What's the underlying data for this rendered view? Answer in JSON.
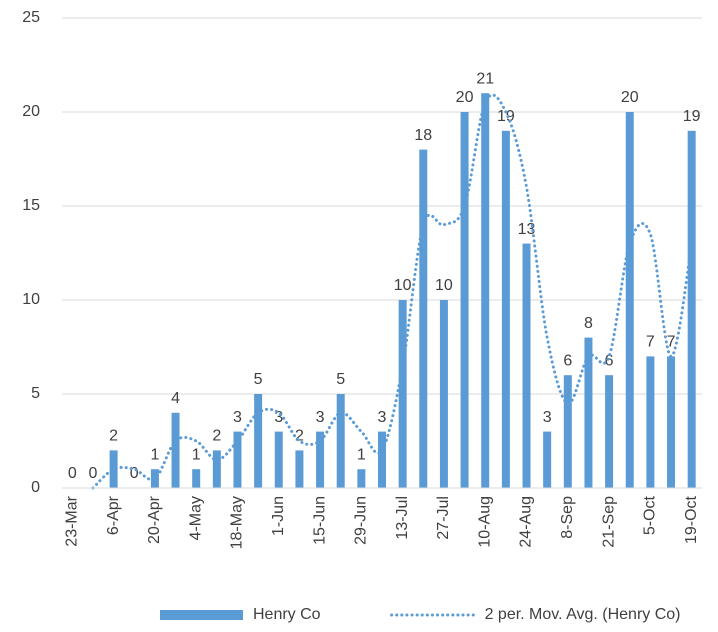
{
  "chart_data": {
    "type": "bar",
    "categories": [
      "23-Mar",
      null,
      "6-Apr",
      null,
      "20-Apr",
      null,
      "4-May",
      null,
      "18-May",
      null,
      "1-Jun",
      null,
      "15-Jun",
      null,
      "29-Jun",
      null,
      "13-Jul",
      null,
      "27-Jul",
      null,
      "10-Aug",
      null,
      "24-Aug",
      null,
      "8-Sep",
      null,
      "21-Sep",
      null,
      "5-Oct",
      null,
      "19-Oct"
    ],
    "series": [
      {
        "name": "Henry Co",
        "type": "bar",
        "color": "#5b9bd5",
        "values": [
          0,
          0,
          2,
          0,
          1,
          4,
          1,
          2,
          3,
          5,
          3,
          2,
          3,
          5,
          1,
          3,
          10,
          18,
          10,
          20,
          21,
          19,
          13,
          3,
          6,
          8,
          6,
          20,
          7,
          7,
          19
        ]
      },
      {
        "name": "2 per. Mov. Avg. (Henry Co)",
        "type": "line",
        "color": "#5b9bd5",
        "dash": "dotted",
        "values": [
          null,
          0,
          1,
          1,
          0.5,
          2.5,
          2.5,
          1.5,
          2.5,
          4,
          4,
          2.5,
          2.5,
          4,
          3,
          2,
          6.5,
          14,
          14,
          15,
          20.5,
          20,
          16,
          8,
          4.5,
          7,
          7,
          13,
          13.5,
          7,
          13
        ]
      }
    ],
    "ylim": [
      0,
      25
    ],
    "yticks": [
      0,
      5,
      10,
      15,
      20,
      25
    ],
    "grid": true,
    "legend": "bottom"
  }
}
